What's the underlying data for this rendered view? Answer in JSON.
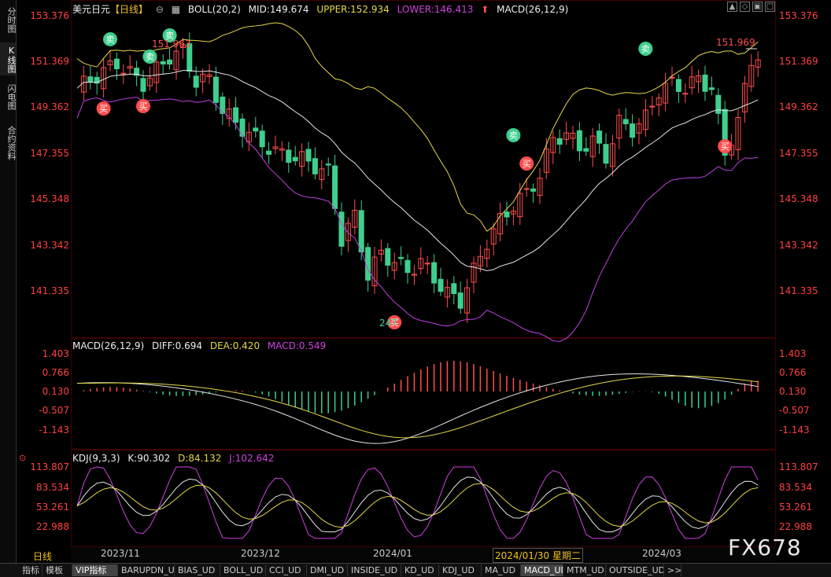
{
  "sidebar": {
    "items": [
      {
        "label": "分时图",
        "active": false
      },
      {
        "label": "K线图",
        "active": true
      },
      {
        "label": "闪电图",
        "active": false
      },
      {
        "label": "合约资料",
        "active": false
      }
    ]
  },
  "main_header": {
    "symbol": "美元日元",
    "period": "【日线】",
    "boll": "BOLL(20,2)",
    "mid": "MID:149.674",
    "upper": "UPPER:152.934",
    "lower": "LOWER:146.413",
    "macd": "MACD(26,12,9)"
  },
  "macd_header": {
    "name": "MACD(26,12,9)",
    "diff": "DIFF:0.694",
    "dea": "DEA:0.420",
    "macd": "MACD:0.549"
  },
  "kdj_header": {
    "name": "KDJ(9,3,3)",
    "k": "K:90.302",
    "d": "D:84.132",
    "j": "J:102.642"
  },
  "price_ticks": [
    "153.376",
    "151.369",
    "149.362",
    "147.355",
    "145.348",
    "143.342",
    "141.335"
  ],
  "macd_ticks": [
    "1.403",
    "0.766",
    "0.130",
    "-0.507",
    "-1.143"
  ],
  "kdj_ticks": [
    "113.807",
    "83.534",
    "53.261",
    "22.988"
  ],
  "annotations": {
    "high_label": "151.969",
    "low_label": "247",
    "early_high": "151.963",
    "buy": "买",
    "sell": "卖"
  },
  "date_axis": {
    "labels": [
      "2023/11",
      "2023/12",
      "2024/01",
      "2024/01/30 星期二",
      "2024/03"
    ]
  },
  "period_badge": "日线",
  "watermark": "FX678",
  "window_controls": [
    "▲",
    "◇",
    "▣",
    "□"
  ],
  "tabs": [
    {
      "label": "指标",
      "active": false
    },
    {
      "label": "模板",
      "active": false
    },
    {
      "label": "VIP指标",
      "active": true
    },
    {
      "label": "BARUPDN_UD",
      "active": false
    },
    {
      "label": "BIAS_UD",
      "active": false
    },
    {
      "label": "BOLL_UD",
      "active": false
    },
    {
      "label": "CCI_UD",
      "active": false
    },
    {
      "label": "DMI_UD",
      "active": false
    },
    {
      "label": "INSIDE_UD",
      "active": false
    },
    {
      "label": "KD_UD",
      "active": false
    },
    {
      "label": "KDJ_UD",
      "active": false
    },
    {
      "label": "MA_UD",
      "active": false
    },
    {
      "label": "MACD_UD",
      "active": true
    },
    {
      "label": "MTM_UD",
      "active": false
    },
    {
      "label": "OUTSIDE_UD",
      "active": false
    },
    {
      "label": ">>",
      "active": false
    }
  ],
  "colors": {
    "up": "#ff4d4d",
    "down": "#3ecf8e",
    "mid": "#e6e6e6",
    "upper": "#e6d84a",
    "lower": "#c040e0",
    "diff": "#e6e6e6",
    "dea": "#e6d84a",
    "k": "#e6e6e6",
    "d": "#e6d84a",
    "j": "#d040e0",
    "axis_text": "#ff4040"
  }
}
